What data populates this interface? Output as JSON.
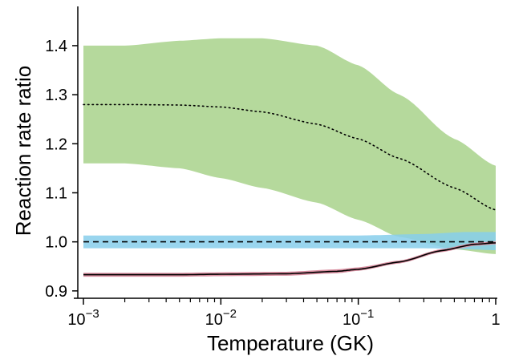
{
  "chart_data": {
    "type": "line",
    "title": "",
    "xlabel": "Temperature (GK)",
    "ylabel": "Reaction rate ratio",
    "x_scale": "log",
    "xlim": [
      0.001,
      1
    ],
    "ylim": [
      0.885,
      1.48
    ],
    "grid": false,
    "legend": "none",
    "x_ticks": [
      {
        "value": 0.001,
        "base": "10",
        "exp": "−3"
      },
      {
        "value": 0.01,
        "base": "10",
        "exp": "−2"
      },
      {
        "value": 0.1,
        "base": "10",
        "exp": "−1"
      },
      {
        "value": 1,
        "base": "1",
        "exp": ""
      }
    ],
    "y_ticks": [
      {
        "value": 0.9,
        "label": "0.9"
      },
      {
        "value": 1.0,
        "label": "1.0"
      },
      {
        "value": 1.1,
        "label": "1.1"
      },
      {
        "value": 1.2,
        "label": "1.2"
      },
      {
        "value": 1.3,
        "label": "1.3"
      },
      {
        "value": 1.4,
        "label": "1.4"
      }
    ],
    "bands": [
      {
        "color": "#b5d99c",
        "x": [
          0.001,
          0.002,
          0.005,
          0.01,
          0.02,
          0.05,
          0.1,
          0.2,
          0.5,
          1
        ],
        "upper": [
          1.4,
          1.4,
          1.41,
          1.415,
          1.415,
          1.4,
          1.36,
          1.3,
          1.21,
          1.155
        ],
        "lower": [
          1.16,
          1.16,
          1.15,
          1.13,
          1.11,
          1.08,
          1.045,
          1.01,
          0.985,
          0.975
        ]
      },
      {
        "color": "#87ceeb",
        "x": [
          0.001,
          0.01,
          0.1,
          0.3,
          0.6,
          1
        ],
        "upper": [
          1.013,
          1.013,
          1.013,
          1.016,
          1.02,
          1.02
        ],
        "lower": [
          0.987,
          0.987,
          0.987,
          0.987,
          0.985,
          0.983
        ]
      },
      {
        "color": "#d98ea0",
        "x": [
          0.001,
          0.005,
          0.01,
          0.03,
          0.07,
          0.1,
          0.2,
          0.4,
          0.7,
          1
        ],
        "upper": [
          0.937,
          0.937,
          0.938,
          0.939,
          0.944,
          0.948,
          0.962,
          0.985,
          0.998,
          1.001
        ],
        "lower": [
          0.929,
          0.929,
          0.93,
          0.931,
          0.936,
          0.941,
          0.956,
          0.979,
          0.992,
          0.995
        ]
      }
    ],
    "series": [
      {
        "style": "dotted",
        "color": "#000000",
        "x": [
          0.001,
          0.002,
          0.005,
          0.01,
          0.02,
          0.05,
          0.1,
          0.2,
          0.5,
          1
        ],
        "y": [
          1.28,
          1.28,
          1.279,
          1.275,
          1.265,
          1.24,
          1.21,
          1.17,
          1.11,
          1.065
        ]
      },
      {
        "style": "dashed",
        "color": "#000000",
        "x": [
          0.001,
          1
        ],
        "y": [
          1.0,
          1.0
        ]
      },
      {
        "style": "solid",
        "color": "#000000",
        "x": [
          0.001,
          0.005,
          0.01,
          0.03,
          0.07,
          0.1,
          0.2,
          0.4,
          0.7,
          1
        ],
        "y": [
          0.933,
          0.933,
          0.934,
          0.935,
          0.94,
          0.944,
          0.959,
          0.982,
          0.995,
          0.998
        ]
      }
    ]
  }
}
